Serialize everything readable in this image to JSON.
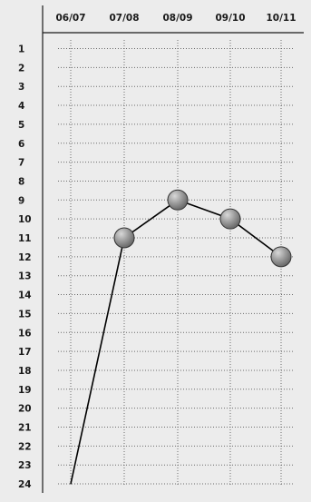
{
  "chart_data": {
    "type": "line",
    "title": "",
    "xlabel": "",
    "ylabel": "",
    "categories": [
      "06/07",
      "07/08",
      "08/09",
      "09/10",
      "10/11"
    ],
    "y_ticks": [
      "1",
      "2",
      "3",
      "4",
      "5",
      "6",
      "7",
      "8",
      "9",
      "10",
      "11",
      "12",
      "13",
      "14",
      "15",
      "16",
      "17",
      "18",
      "19",
      "20",
      "21",
      "22",
      "23",
      "24"
    ],
    "ylim": [
      1,
      24
    ],
    "y_inverted": true,
    "grid": true,
    "series": [
      {
        "values": [
          24,
          11,
          9,
          10,
          12
        ],
        "markers": [
          false,
          true,
          true,
          true,
          true
        ]
      }
    ],
    "colors": {
      "background": "#ececec",
      "line": "#000000",
      "marker_fill": "#9a9a9a",
      "grid": "#6b6b6b"
    }
  }
}
